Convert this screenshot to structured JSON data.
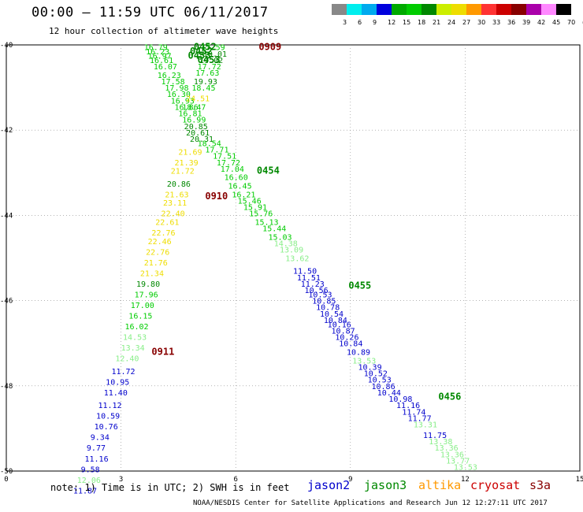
{
  "header": {
    "title": "00:00 — 11:59 UTC 06/11/2017",
    "subtitle": "12 hour collection of altimeter wave heights"
  },
  "colorbar": {
    "colors": [
      "#888888",
      "#00eeee",
      "#00aaee",
      "#0000dd",
      "#00aa00",
      "#00cc00",
      "#008800",
      "#ccee00",
      "#eedd00",
      "#ff9900",
      "#ff3333",
      "#cc0000",
      "#880000",
      "#aa00aa",
      "#ff88ff",
      "#000000"
    ],
    "labels": [
      "3",
      "6",
      "9",
      "12",
      "15",
      "18",
      "21",
      "24",
      "27",
      "30",
      "33",
      "36",
      "39",
      "42",
      "45",
      "70",
      "(ft)"
    ]
  },
  "note": "note: 1) Time is in UTC; 2) SWH is in feet",
  "satellites": [
    {
      "name": "jason2",
      "color": "#0000cc"
    },
    {
      "name": "jason3",
      "color": "#008800"
    },
    {
      "name": "altika",
      "color": "#ff9900"
    },
    {
      "name": "cryosat",
      "color": "#cc0000"
    },
    {
      "name": "s3a",
      "color": "#880000"
    }
  ],
  "footer": "NOAA/NESDIS Center for Satellite Applications and Research   Jun 12 12:27:11 UTC 2017",
  "chart_data": {
    "type": "scatter",
    "xlim": [
      0,
      15
    ],
    "ylim": [
      -50,
      -40
    ],
    "xticks": [
      0,
      3,
      6,
      9,
      12,
      15
    ],
    "yticks": [
      -40,
      -42,
      -44,
      -46,
      -48,
      -50
    ],
    "xtick_labels": [
      "0",
      "3",
      "6",
      "9",
      "12",
      "15"
    ],
    "ytick_labels": [
      "-40",
      "-42",
      "-44",
      "-46",
      "-48",
      "-50"
    ],
    "grid": true,
    "time_labels": [
      {
        "x": 4.9,
        "y": -40.05,
        "text": "0452",
        "color": "#008800"
      },
      {
        "x": 4.8,
        "y": -40.15,
        "text": "0452",
        "color": "#008800"
      },
      {
        "x": 4.75,
        "y": -40.25,
        "text": "0453",
        "color": "#008800"
      },
      {
        "x": 5.0,
        "y": -40.35,
        "text": "0453",
        "color": "#008800"
      },
      {
        "x": 6.6,
        "y": -40.05,
        "text": "0909",
        "color": "#880000"
      },
      {
        "x": 6.55,
        "y": -42.95,
        "text": "0454",
        "color": "#008800"
      },
      {
        "x": 5.2,
        "y": -43.55,
        "text": "0910",
        "color": "#880000"
      },
      {
        "x": 8.95,
        "y": -45.65,
        "text": "0455",
        "color": "#008800"
      },
      {
        "x": 3.8,
        "y": -47.2,
        "text": "0911",
        "color": "#880000"
      },
      {
        "x": 11.3,
        "y": -48.25,
        "text": "0456",
        "color": "#008800"
      }
    ],
    "points": [
      {
        "x": 3.6,
        "y": -40.05,
        "v": "16.79",
        "color": "#00cc00"
      },
      {
        "x": 3.65,
        "y": -40.15,
        "v": "16.23",
        "color": "#00cc00"
      },
      {
        "x": 3.7,
        "y": -40.25,
        "v": "16.97",
        "color": "#00cc00"
      },
      {
        "x": 3.75,
        "y": -40.35,
        "v": "16.61",
        "color": "#00cc00"
      },
      {
        "x": 3.85,
        "y": -40.5,
        "v": "16.07",
        "color": "#00cc00"
      },
      {
        "x": 3.95,
        "y": -40.7,
        "v": "16.23",
        "color": "#00cc00"
      },
      {
        "x": 4.05,
        "y": -40.85,
        "v": "17.58",
        "color": "#00cc00"
      },
      {
        "x": 4.15,
        "y": -41.0,
        "v": "17.98",
        "color": "#00cc00"
      },
      {
        "x": 4.2,
        "y": -41.15,
        "v": "16.30",
        "color": "#00cc00"
      },
      {
        "x": 4.3,
        "y": -41.3,
        "v": "16.93",
        "color": "#00cc00"
      },
      {
        "x": 4.4,
        "y": -41.45,
        "v": "16.86",
        "color": "#00cc00"
      },
      {
        "x": 4.5,
        "y": -41.6,
        "v": "16.81",
        "color": "#00cc00"
      },
      {
        "x": 4.6,
        "y": -41.75,
        "v": "16.99",
        "color": "#00cc00"
      },
      {
        "x": 4.65,
        "y": -41.9,
        "v": "20.85",
        "color": "#008800"
      },
      {
        "x": 4.7,
        "y": -42.05,
        "v": "20.61",
        "color": "#008800"
      },
      {
        "x": 4.8,
        "y": -42.2,
        "v": "20.31",
        "color": "#008800"
      },
      {
        "x": 5.0,
        "y": -42.3,
        "v": "18.54",
        "color": "#00cc00"
      },
      {
        "x": 5.2,
        "y": -42.45,
        "v": "17.71",
        "color": "#00cc00"
      },
      {
        "x": 5.4,
        "y": -42.6,
        "v": "17.51",
        "color": "#00cc00"
      },
      {
        "x": 5.5,
        "y": -42.75,
        "v": "17.72",
        "color": "#00cc00"
      },
      {
        "x": 5.6,
        "y": -42.9,
        "v": "17.04",
        "color": "#00cc00"
      },
      {
        "x": 5.7,
        "y": -43.1,
        "v": "16.60",
        "color": "#00cc00"
      },
      {
        "x": 5.8,
        "y": -43.3,
        "v": "16.45",
        "color": "#00cc00"
      },
      {
        "x": 5.9,
        "y": -43.5,
        "v": "16.21",
        "color": "#00cc00"
      },
      {
        "x": 6.05,
        "y": -43.65,
        "v": "15.46",
        "color": "#00cc00"
      },
      {
        "x": 6.2,
        "y": -43.8,
        "v": "15.91",
        "color": "#00cc00"
      },
      {
        "x": 6.35,
        "y": -43.95,
        "v": "15.76",
        "color": "#00cc00"
      },
      {
        "x": 6.5,
        "y": -44.15,
        "v": "15.13",
        "color": "#00cc00"
      },
      {
        "x": 6.7,
        "y": -44.3,
        "v": "15.44",
        "color": "#00cc00"
      },
      {
        "x": 6.85,
        "y": -44.5,
        "v": "15.03",
        "color": "#00cc00"
      },
      {
        "x": 7.0,
        "y": -44.65,
        "v": "14.38",
        "color": "#88ee88"
      },
      {
        "x": 7.15,
        "y": -44.8,
        "v": "13.09",
        "color": "#88ee88"
      },
      {
        "x": 7.3,
        "y": -45.0,
        "v": "13.62",
        "color": "#88ee88"
      },
      {
        "x": 7.5,
        "y": -45.3,
        "v": "11.50",
        "color": "#0000cc"
      },
      {
        "x": 7.6,
        "y": -45.45,
        "v": "11.51",
        "color": "#0000cc"
      },
      {
        "x": 7.7,
        "y": -45.6,
        "v": "11.23",
        "color": "#0000cc"
      },
      {
        "x": 7.8,
        "y": -45.75,
        "v": "10.56",
        "color": "#0000cc"
      },
      {
        "x": 7.9,
        "y": -45.85,
        "v": "10.53",
        "color": "#0000cc"
      },
      {
        "x": 8.0,
        "y": -46.0,
        "v": "10.85",
        "color": "#0000cc"
      },
      {
        "x": 8.1,
        "y": -46.15,
        "v": "10.78",
        "color": "#0000cc"
      },
      {
        "x": 8.2,
        "y": -46.3,
        "v": "10.54",
        "color": "#0000cc"
      },
      {
        "x": 8.3,
        "y": -46.45,
        "v": "10.84",
        "color": "#0000cc"
      },
      {
        "x": 8.4,
        "y": -46.55,
        "v": "10.16",
        "color": "#0000cc"
      },
      {
        "x": 8.5,
        "y": -46.7,
        "v": "10.87",
        "color": "#0000cc"
      },
      {
        "x": 8.6,
        "y": -46.85,
        "v": "10.26",
        "color": "#0000cc"
      },
      {
        "x": 8.7,
        "y": -47.0,
        "v": "10.84",
        "color": "#0000cc"
      },
      {
        "x": 8.9,
        "y": -47.2,
        "v": "10.89",
        "color": "#0000cc"
      },
      {
        "x": 9.05,
        "y": -47.4,
        "v": "13.53",
        "color": "#88ee88"
      },
      {
        "x": 9.2,
        "y": -47.55,
        "v": "10.39",
        "color": "#0000cc"
      },
      {
        "x": 9.35,
        "y": -47.7,
        "v": "10.52",
        "color": "#0000cc"
      },
      {
        "x": 9.45,
        "y": -47.85,
        "v": "10.53",
        "color": "#0000cc"
      },
      {
        "x": 9.55,
        "y": -48.0,
        "v": "10.86",
        "color": "#0000cc"
      },
      {
        "x": 9.7,
        "y": -48.15,
        "v": "10.44",
        "color": "#0000cc"
      },
      {
        "x": 10.0,
        "y": -48.3,
        "v": "10.98",
        "color": "#0000cc"
      },
      {
        "x": 10.2,
        "y": -48.45,
        "v": "11.16",
        "color": "#0000cc"
      },
      {
        "x": 10.35,
        "y": -48.6,
        "v": "11.74",
        "color": "#0000cc"
      },
      {
        "x": 10.5,
        "y": -48.75,
        "v": "11.77",
        "color": "#0000cc"
      },
      {
        "x": 10.65,
        "y": -48.9,
        "v": "13.31",
        "color": "#88ee88"
      },
      {
        "x": 10.9,
        "y": -49.15,
        "v": "11.75",
        "color": "#0000cc"
      },
      {
        "x": 11.05,
        "y": -49.3,
        "v": "13.38",
        "color": "#88ee88"
      },
      {
        "x": 11.2,
        "y": -49.45,
        "v": "13.36",
        "color": "#88ee88"
      },
      {
        "x": 11.35,
        "y": -49.6,
        "v": "13.36",
        "color": "#88ee88"
      },
      {
        "x": 11.5,
        "y": -49.75,
        "v": "13.77",
        "color": "#88ee88"
      },
      {
        "x": 11.7,
        "y": -49.9,
        "v": "13.53",
        "color": "#88ee88"
      },
      {
        "x": 5.1,
        "y": -40.05,
        "v": "17.59",
        "color": "#00cc00"
      },
      {
        "x": 5.15,
        "y": -40.2,
        "v": "19.01",
        "color": "#008800"
      },
      {
        "x": 5.05,
        "y": -40.35,
        "v": "19.02",
        "color": "#008800"
      },
      {
        "x": 5.0,
        "y": -40.5,
        "v": "17.72",
        "color": "#00cc00"
      },
      {
        "x": 4.95,
        "y": -40.65,
        "v": "17.63",
        "color": "#00cc00"
      },
      {
        "x": 4.9,
        "y": -40.85,
        "v": "19.93",
        "color": "#008800"
      },
      {
        "x": 4.85,
        "y": -41.0,
        "v": "18.45",
        "color": "#00cc00"
      },
      {
        "x": 4.7,
        "y": -41.25,
        "v": "24.51",
        "color": "#eedd00"
      },
      {
        "x": 4.6,
        "y": -41.45,
        "v": "18.47",
        "color": "#00cc00"
      },
      {
        "x": 4.5,
        "y": -42.5,
        "v": "21.69",
        "color": "#eedd00"
      },
      {
        "x": 4.4,
        "y": -42.75,
        "v": "21.39",
        "color": "#eedd00"
      },
      {
        "x": 4.3,
        "y": -42.95,
        "v": "21.72",
        "color": "#eedd00"
      },
      {
        "x": 4.2,
        "y": -43.25,
        "v": "20.86",
        "color": "#008800"
      },
      {
        "x": 4.15,
        "y": -43.5,
        "v": "21.63",
        "color": "#eedd00"
      },
      {
        "x": 4.1,
        "y": -43.7,
        "v": "23.11",
        "color": "#eedd00"
      },
      {
        "x": 4.05,
        "y": -43.95,
        "v": "22.40",
        "color": "#eedd00"
      },
      {
        "x": 3.9,
        "y": -44.15,
        "v": "22.61",
        "color": "#eedd00"
      },
      {
        "x": 3.8,
        "y": -44.4,
        "v": "22.76",
        "color": "#eedd00"
      },
      {
        "x": 3.7,
        "y": -44.6,
        "v": "22.46",
        "color": "#eedd00"
      },
      {
        "x": 3.65,
        "y": -44.85,
        "v": "22.76",
        "color": "#eedd00"
      },
      {
        "x": 3.6,
        "y": -45.1,
        "v": "21.76",
        "color": "#eedd00"
      },
      {
        "x": 3.5,
        "y": -45.35,
        "v": "21.34",
        "color": "#eedd00"
      },
      {
        "x": 3.4,
        "y": -45.6,
        "v": "19.80",
        "color": "#008800"
      },
      {
        "x": 3.35,
        "y": -45.85,
        "v": "17.96",
        "color": "#00cc00"
      },
      {
        "x": 3.25,
        "y": -46.1,
        "v": "17.00",
        "color": "#00cc00"
      },
      {
        "x": 3.2,
        "y": -46.35,
        "v": "16.15",
        "color": "#00cc00"
      },
      {
        "x": 3.1,
        "y": -46.6,
        "v": "16.02",
        "color": "#00cc00"
      },
      {
        "x": 3.05,
        "y": -46.85,
        "v": "14.53",
        "color": "#88ee88"
      },
      {
        "x": 3.0,
        "y": -47.1,
        "v": "13.34",
        "color": "#88ee88"
      },
      {
        "x": 2.85,
        "y": -47.35,
        "v": "12.40",
        "color": "#88ee88"
      },
      {
        "x": 2.75,
        "y": -47.65,
        "v": "11.72",
        "color": "#0000cc"
      },
      {
        "x": 2.6,
        "y": -47.9,
        "v": "10.95",
        "color": "#0000cc"
      },
      {
        "x": 2.55,
        "y": -48.15,
        "v": "11.40",
        "color": "#0000cc"
      },
      {
        "x": 2.4,
        "y": -48.45,
        "v": "11.12",
        "color": "#0000cc"
      },
      {
        "x": 2.35,
        "y": -48.7,
        "v": "10.59",
        "color": "#0000cc"
      },
      {
        "x": 2.3,
        "y": -48.95,
        "v": "10.76",
        "color": "#0000cc"
      },
      {
        "x": 2.2,
        "y": -49.2,
        "v": "9.34",
        "color": "#0000cc"
      },
      {
        "x": 2.1,
        "y": -49.45,
        "v": "9.77",
        "color": "#0000cc"
      },
      {
        "x": 2.05,
        "y": -49.7,
        "v": "11.16",
        "color": "#0000cc"
      },
      {
        "x": 1.95,
        "y": -49.95,
        "v": "9.58",
        "color": "#0000cc"
      },
      {
        "x": 1.85,
        "y": -50.2,
        "v": "12.06",
        "color": "#88ee88"
      },
      {
        "x": 1.75,
        "y": -50.45,
        "v": "11.87",
        "color": "#0000cc"
      }
    ]
  }
}
